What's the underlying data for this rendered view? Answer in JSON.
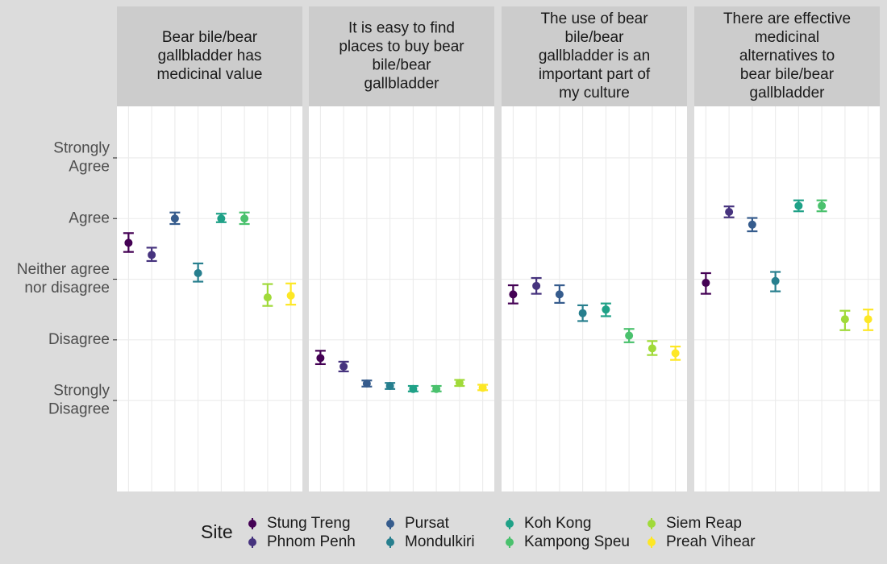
{
  "chart_data": {
    "type": "errorbar",
    "y_tick_labels": [
      "Strongly\nAgree",
      "Agree",
      "Neither agree\nnor disagree",
      "Disagree",
      "Strongly\nDisagree"
    ],
    "y_tick_values": [
      5,
      4,
      3,
      2,
      1
    ],
    "ylim": [
      -0.5,
      5.85
    ],
    "grid": true,
    "legend": {
      "title": "Site",
      "placement": "bottom",
      "entries": [
        {
          "name": "Stung Treng",
          "color": "#440154"
        },
        {
          "name": "Phnom Penh",
          "color": "#46337e"
        },
        {
          "name": "Pursat",
          "color": "#365c8d"
        },
        {
          "name": "Mondulkiri",
          "color": "#277f8e"
        },
        {
          "name": "Koh Kong",
          "color": "#1fa187"
        },
        {
          "name": "Kampong Speu",
          "color": "#4ac16d"
        },
        {
          "name": "Siem Reap",
          "color": "#a0da39"
        },
        {
          "name": "Preah Vihear",
          "color": "#fde725"
        }
      ]
    },
    "panels": [
      {
        "title": "Bear bile/bear\ngallbladder has\nmedicinal value",
        "points": [
          {
            "site": "Stung Treng",
            "y": 3.6,
            "lo": 3.45,
            "hi": 3.76
          },
          {
            "site": "Phnom Penh",
            "y": 3.4,
            "lo": 3.3,
            "hi": 3.52
          },
          {
            "site": "Pursat",
            "y": 4.0,
            "lo": 3.91,
            "hi": 4.1
          },
          {
            "site": "Mondulkiri",
            "y": 3.1,
            "lo": 2.96,
            "hi": 3.26
          },
          {
            "site": "Koh Kong",
            "y": 4.0,
            "lo": 3.94,
            "hi": 4.08
          },
          {
            "site": "Kampong Speu",
            "y": 4.0,
            "lo": 3.91,
            "hi": 4.1
          },
          {
            "site": "Siem Reap",
            "y": 2.7,
            "lo": 2.56,
            "hi": 2.92
          },
          {
            "site": "Preah Vihear",
            "y": 2.73,
            "lo": 2.58,
            "hi": 2.93
          }
        ]
      },
      {
        "title": "It is easy to find\nplaces to buy bear\nbile/bear\ngallbladder",
        "points": [
          {
            "site": "Stung Treng",
            "y": 1.7,
            "lo": 1.6,
            "hi": 1.82
          },
          {
            "site": "Phnom Penh",
            "y": 1.56,
            "lo": 1.48,
            "hi": 1.64
          },
          {
            "site": "Pursat",
            "y": 1.28,
            "lo": 1.23,
            "hi": 1.33
          },
          {
            "site": "Mondulkiri",
            "y": 1.24,
            "lo": 1.19,
            "hi": 1.29
          },
          {
            "site": "Koh Kong",
            "y": 1.19,
            "lo": 1.15,
            "hi": 1.24
          },
          {
            "site": "Kampong Speu",
            "y": 1.19,
            "lo": 1.15,
            "hi": 1.24
          },
          {
            "site": "Siem Reap",
            "y": 1.29,
            "lo": 1.24,
            "hi": 1.34
          },
          {
            "site": "Preah Vihear",
            "y": 1.21,
            "lo": 1.17,
            "hi": 1.26
          }
        ]
      },
      {
        "title": "The use of bear\nbile/bear\ngallbladder is an\nimportant part of\nmy culture",
        "points": [
          {
            "site": "Stung Treng",
            "y": 2.75,
            "lo": 2.6,
            "hi": 2.9
          },
          {
            "site": "Phnom Penh",
            "y": 2.89,
            "lo": 2.76,
            "hi": 3.02
          },
          {
            "site": "Pursat",
            "y": 2.75,
            "lo": 2.61,
            "hi": 2.9
          },
          {
            "site": "Mondulkiri",
            "y": 2.44,
            "lo": 2.31,
            "hi": 2.57
          },
          {
            "site": "Koh Kong",
            "y": 2.5,
            "lo": 2.39,
            "hi": 2.6
          },
          {
            "site": "Kampong Speu",
            "y": 2.07,
            "lo": 1.96,
            "hi": 2.18
          },
          {
            "site": "Siem Reap",
            "y": 1.86,
            "lo": 1.75,
            "hi": 1.98
          },
          {
            "site": "Preah Vihear",
            "y": 1.78,
            "lo": 1.67,
            "hi": 1.89
          }
        ]
      },
      {
        "title": "There are effective\nmedicinal\nalternatives to\nbear bile/bear\ngallbladder",
        "points": [
          {
            "site": "Stung Treng",
            "y": 2.94,
            "lo": 2.76,
            "hi": 3.1
          },
          {
            "site": "Phnom Penh",
            "y": 4.11,
            "lo": 4.02,
            "hi": 4.2
          },
          {
            "site": "Pursat",
            "y": 3.9,
            "lo": 3.79,
            "hi": 4.01
          },
          {
            "site": "Mondulkiri",
            "y": 2.97,
            "lo": 2.8,
            "hi": 3.12
          },
          {
            "site": "Koh Kong",
            "y": 4.21,
            "lo": 4.12,
            "hi": 4.3
          },
          {
            "site": "Kampong Speu",
            "y": 4.21,
            "lo": 4.12,
            "hi": 4.3
          },
          {
            "site": "Siem Reap",
            "y": 2.34,
            "lo": 2.16,
            "hi": 2.48
          },
          {
            "site": "Preah Vihear",
            "y": 2.34,
            "lo": 2.16,
            "hi": 2.5
          }
        ]
      }
    ]
  }
}
